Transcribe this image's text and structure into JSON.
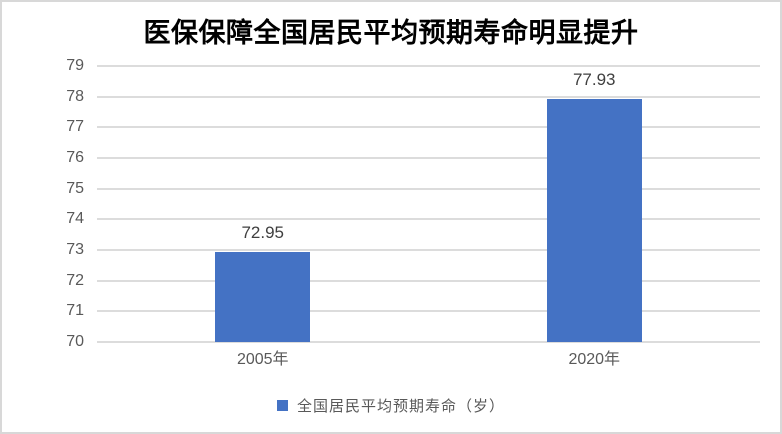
{
  "title": "医保保障全国居民平均预期寿命明显提升",
  "chart_data": {
    "type": "bar",
    "title": "医保保障全国居民平均预期寿命明显提升",
    "categories": [
      "2005年",
      "2020年"
    ],
    "values": [
      72.95,
      77.93
    ],
    "value_labels": [
      "72.95",
      "77.93"
    ],
    "xlabel": "",
    "ylabel": "",
    "ylim": [
      70,
      79
    ],
    "yticks": [
      70,
      71,
      72,
      73,
      74,
      75,
      76,
      77,
      78,
      79
    ],
    "grid": true,
    "data_labels_shown": true,
    "legend": {
      "position": "bottom",
      "entries": [
        "全国居民平均预期寿命（岁）"
      ]
    }
  },
  "legend": {
    "label": "全国居民平均预期寿命（岁）"
  },
  "colors": {
    "bar": "#4472C4",
    "gridline": "#DCDCDC",
    "axis_text": "#595959",
    "value_label_text": "#3F3F3F",
    "title_text": "#000000",
    "border": "#D8D8D8",
    "background": "#FFFFFF"
  }
}
